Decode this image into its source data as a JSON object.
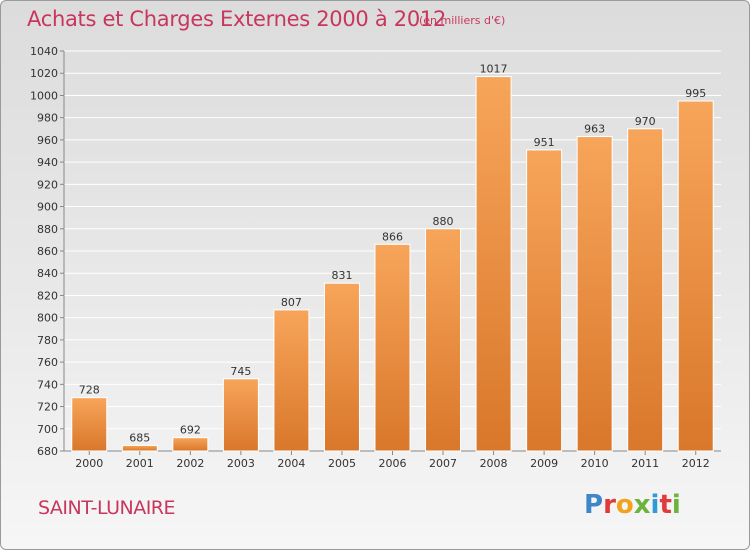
{
  "header": {
    "title": "Achats et Charges Externes 2000 à 2012",
    "subtitle": "(en milliers d'€)"
  },
  "footer": {
    "commune": "SAINT-LUNAIRE",
    "logo_letters": [
      "P",
      "r",
      "o",
      "x",
      "i",
      "t",
      "i"
    ],
    "logo_colors": [
      "#3f86c9",
      "#e03a3a",
      "#f2a31b",
      "#6bb33a",
      "#2f9bd6",
      "#e03a3a",
      "#6bb33a"
    ]
  },
  "chart_data": {
    "type": "bar",
    "title": "Achats et Charges Externes 2000 à 2012",
    "subtitle": "(en milliers d'€)",
    "categories": [
      "2000",
      "2001",
      "2002",
      "2003",
      "2004",
      "2005",
      "2006",
      "2007",
      "2008",
      "2009",
      "2010",
      "2011",
      "2012"
    ],
    "values": [
      728,
      685,
      692,
      745,
      807,
      831,
      866,
      880,
      1017,
      951,
      963,
      970,
      995
    ],
    "ylim": [
      680,
      1040
    ],
    "yticks": [
      680,
      700,
      720,
      740,
      760,
      780,
      800,
      820,
      840,
      860,
      880,
      900,
      920,
      940,
      960,
      980,
      1000,
      1020,
      1040
    ],
    "grid": true,
    "bar_color_top": "#f7a55a",
    "bar_color_bottom": "#d9772a",
    "grid_color": "#ffffff"
  }
}
